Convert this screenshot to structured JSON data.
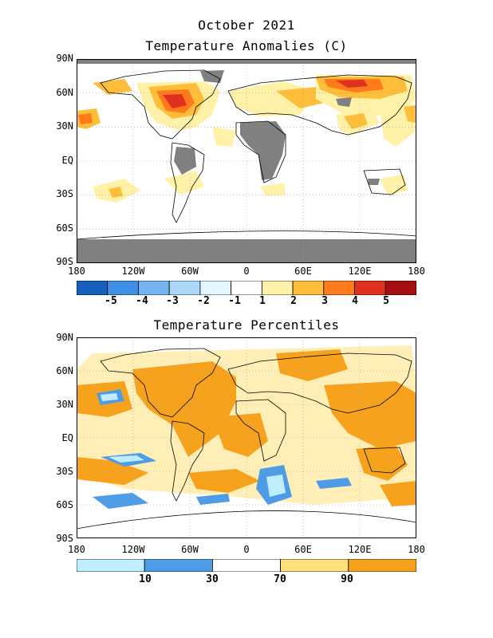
{
  "header": {
    "month": "October 2021"
  },
  "panels": [
    {
      "title": "Temperature Anomalies (C)",
      "lat_labels": [
        "90N",
        "60N",
        "30N",
        "EQ",
        "30S",
        "60S",
        "90S"
      ],
      "lon_labels": [
        "180",
        "120W",
        "60W",
        "0",
        "60E",
        "120E",
        "180"
      ],
      "legend": {
        "colors": [
          "#1560bd",
          "#3f8fe6",
          "#74b4f0",
          "#a9d8fa",
          "#e2f7ff",
          "#ffffff",
          "#fff2a8",
          "#ffbe3a",
          "#ff7a1a",
          "#e0301e",
          "#a50f0f"
        ],
        "labels": [
          "-5",
          "-4",
          "-3",
          "-2",
          "-1",
          "1",
          "2",
          "3",
          "4",
          "5"
        ]
      }
    },
    {
      "title": "Temperature Percentiles",
      "lat_labels": [
        "90N",
        "60N",
        "30N",
        "EQ",
        "30S",
        "60S",
        "90S"
      ],
      "lon_labels": [
        "180",
        "120W",
        "60W",
        "0",
        "60E",
        "120E",
        "180"
      ],
      "legend": {
        "colors": [
          "#bfeeff",
          "#4f9ce6",
          "#ffffff",
          "#ffe07a",
          "#f7a21c"
        ],
        "labels": [
          "10",
          "30",
          "70",
          "90"
        ]
      }
    }
  ]
}
